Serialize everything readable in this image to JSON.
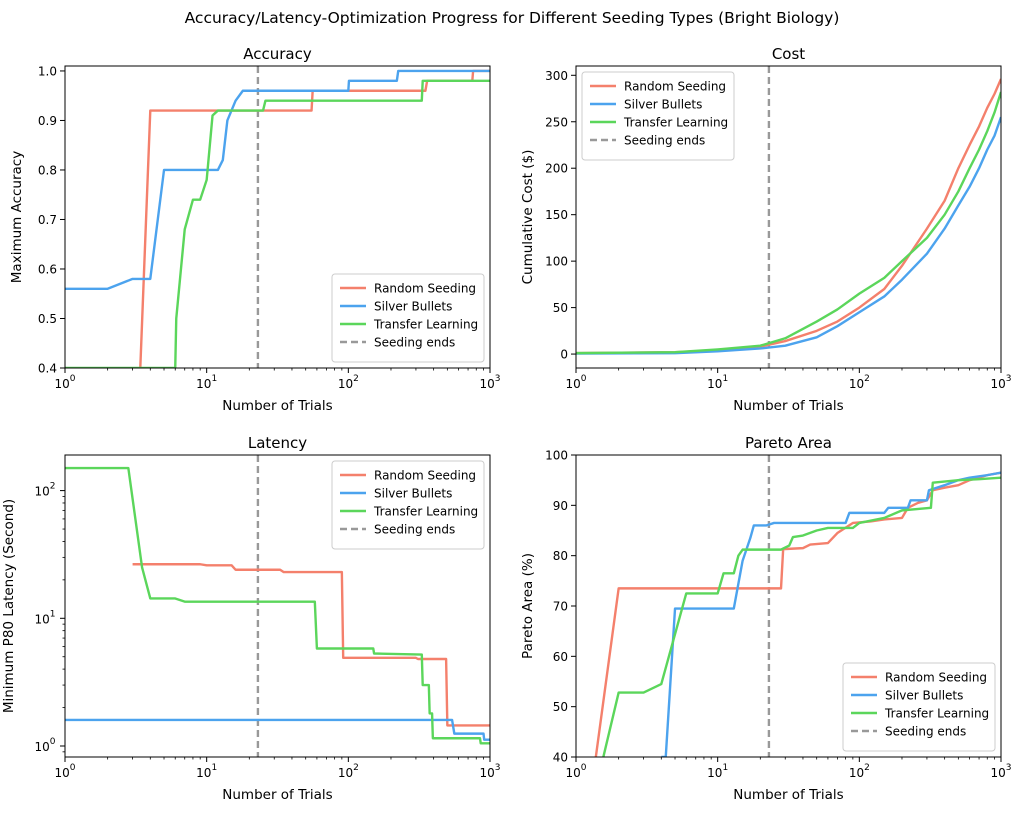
{
  "suptitle": "Accuracy/Latency-Optimization Progress for Different Seeding Types (Bright Biology)",
  "colors": {
    "Random Seeding": "#f4806c",
    "Silver Bullets": "#4ca3ee",
    "Transfer Learning": "#5bd65b",
    "Seeding ends": "#999999"
  },
  "chart_data": [
    {
      "type": "line",
      "title": "Accuracy",
      "xlabel": "Number of Trials",
      "ylabel": "Maximum Accuracy",
      "xscale": "log",
      "yscale": "linear",
      "xlim": [
        1,
        1000
      ],
      "ylim": [
        0.4,
        1.01
      ],
      "yticks": [
        0.4,
        0.5,
        0.6,
        0.7,
        0.8,
        0.9,
        1.0
      ],
      "yticklabels": [
        "0.4",
        "0.5",
        "0.6",
        "0.7",
        "0.8",
        "0.9",
        "1.0"
      ],
      "xticks": [
        1,
        10,
        100,
        1000
      ],
      "xticklabels": [
        "10",
        "10",
        "10",
        "10"
      ],
      "xtick_exponents": [
        "0",
        "1",
        "2",
        "3"
      ],
      "legend_loc": "lower-right",
      "vline": {
        "x": 23,
        "label": "Seeding ends"
      },
      "series": [
        {
          "name": "Random Seeding",
          "points": [
            [
              3.3,
              0.38
            ],
            [
              3.4,
              0.4
            ],
            [
              4,
              0.92
            ],
            [
              55,
              0.92
            ],
            [
              56,
              0.96
            ],
            [
              350,
              0.96
            ],
            [
              360,
              0.98
            ],
            [
              750,
              0.98
            ],
            [
              760,
              1.0
            ],
            [
              1000,
              1.0
            ]
          ]
        },
        {
          "name": "Silver Bullets",
          "points": [
            [
              1,
              0.56
            ],
            [
              2,
              0.56
            ],
            [
              3,
              0.58
            ],
            [
              4,
              0.58
            ],
            [
              5,
              0.8
            ],
            [
              12,
              0.8
            ],
            [
              13,
              0.82
            ],
            [
              14,
              0.9
            ],
            [
              16,
              0.94
            ],
            [
              18,
              0.96
            ],
            [
              100,
              0.96
            ],
            [
              101,
              0.98
            ],
            [
              220,
              0.98
            ],
            [
              225,
              1.0
            ],
            [
              1000,
              1.0
            ]
          ]
        },
        {
          "name": "Transfer Learning",
          "points": [
            [
              1,
              0.4
            ],
            [
              6,
              0.4
            ],
            [
              6.1,
              0.5
            ],
            [
              7,
              0.68
            ],
            [
              8,
              0.74
            ],
            [
              9,
              0.74
            ],
            [
              10,
              0.78
            ],
            [
              11,
              0.91
            ],
            [
              12,
              0.92
            ],
            [
              25,
              0.92
            ],
            [
              26,
              0.94
            ],
            [
              330,
              0.94
            ],
            [
              335,
              0.98
            ],
            [
              1000,
              0.98
            ]
          ]
        }
      ]
    },
    {
      "type": "line",
      "title": "Cost",
      "xlabel": "Number of Trials",
      "ylabel": "Cumulative Cost ($)",
      "xscale": "log",
      "yscale": "linear",
      "xlim": [
        1,
        1000
      ],
      "ylim": [
        -15,
        310
      ],
      "yticks": [
        0,
        50,
        100,
        150,
        200,
        250,
        300
      ],
      "yticklabels": [
        "0",
        "50",
        "100",
        "150",
        "200",
        "250",
        "300"
      ],
      "xticks": [
        1,
        10,
        100,
        1000
      ],
      "xticklabels": [
        "10",
        "10",
        "10",
        "10"
      ],
      "xtick_exponents": [
        "0",
        "1",
        "2",
        "3"
      ],
      "legend_loc": "upper-left",
      "vline": {
        "x": 23,
        "label": "Seeding ends"
      },
      "series": [
        {
          "name": "Random Seeding",
          "points": [
            [
              1,
              1
            ],
            [
              5,
              2
            ],
            [
              10,
              4
            ],
            [
              20,
              8
            ],
            [
              30,
              14
            ],
            [
              50,
              25
            ],
            [
              70,
              35
            ],
            [
              100,
              50
            ],
            [
              150,
              70
            ],
            [
              200,
              95
            ],
            [
              300,
              135
            ],
            [
              400,
              165
            ],
            [
              500,
              200
            ],
            [
              600,
              225
            ],
            [
              700,
              245
            ],
            [
              800,
              265
            ],
            [
              900,
              280
            ],
            [
              1000,
              296
            ]
          ]
        },
        {
          "name": "Silver Bullets",
          "points": [
            [
              1,
              0.5
            ],
            [
              5,
              1
            ],
            [
              10,
              3
            ],
            [
              20,
              6
            ],
            [
              30,
              9
            ],
            [
              50,
              18
            ],
            [
              70,
              30
            ],
            [
              100,
              45
            ],
            [
              150,
              62
            ],
            [
              200,
              80
            ],
            [
              300,
              108
            ],
            [
              400,
              135
            ],
            [
              500,
              160
            ],
            [
              600,
              180
            ],
            [
              700,
              200
            ],
            [
              800,
              220
            ],
            [
              900,
              235
            ],
            [
              1000,
              255
            ]
          ]
        },
        {
          "name": "Transfer Learning",
          "points": [
            [
              1,
              1
            ],
            [
              5,
              2
            ],
            [
              10,
              5
            ],
            [
              20,
              9
            ],
            [
              30,
              17
            ],
            [
              50,
              35
            ],
            [
              70,
              48
            ],
            [
              100,
              65
            ],
            [
              150,
              82
            ],
            [
              200,
              100
            ],
            [
              300,
              125
            ],
            [
              400,
              150
            ],
            [
              500,
              175
            ],
            [
              600,
              200
            ],
            [
              700,
              220
            ],
            [
              800,
              240
            ],
            [
              900,
              260
            ],
            [
              1000,
              282
            ]
          ]
        }
      ]
    },
    {
      "type": "line",
      "title": "Latency",
      "xlabel": "Number of Trials",
      "ylabel": "Minimum P80 Latency (Second)",
      "xscale": "log",
      "yscale": "log",
      "xlim": [
        1,
        1000
      ],
      "ylim": [
        0.82,
        190
      ],
      "yticks": [
        1,
        10,
        100
      ],
      "yticklabels": [
        "10",
        "10",
        "10"
      ],
      "ytick_exponents": [
        "0",
        "1",
        "2"
      ],
      "xticks": [
        1,
        10,
        100,
        1000
      ],
      "xticklabels": [
        "10",
        "10",
        "10",
        "10"
      ],
      "xtick_exponents": [
        "0",
        "1",
        "2",
        "3"
      ],
      "legend_loc": "upper-right",
      "vline": {
        "x": 23,
        "label": "Seeding ends"
      },
      "series": [
        {
          "name": "Random Seeding",
          "points": [
            [
              3,
              26.5
            ],
            [
              9,
              26.5
            ],
            [
              10,
              26
            ],
            [
              15,
              26
            ],
            [
              16,
              24
            ],
            [
              33,
              24
            ],
            [
              35,
              23
            ],
            [
              90,
              23
            ],
            [
              92,
              4.9
            ],
            [
              300,
              4.9
            ],
            [
              310,
              4.8
            ],
            [
              490,
              4.8
            ],
            [
              500,
              1.45
            ],
            [
              1000,
              1.45
            ]
          ]
        },
        {
          "name": "Silver Bullets",
          "points": [
            [
              1,
              1.6
            ],
            [
              540,
              1.6
            ],
            [
              560,
              1.25
            ],
            [
              900,
              1.25
            ],
            [
              910,
              1.12
            ],
            [
              1000,
              1.12
            ]
          ]
        },
        {
          "name": "Transfer Learning",
          "points": [
            [
              1,
              150
            ],
            [
              2.8,
              150
            ],
            [
              3.5,
              25
            ],
            [
              4,
              14.3
            ],
            [
              6,
              14.3
            ],
            [
              7,
              13.5
            ],
            [
              58,
              13.5
            ],
            [
              60,
              5.8
            ],
            [
              150,
              5.8
            ],
            [
              152,
              5.3
            ],
            [
              330,
              5.2
            ],
            [
              335,
              3
            ],
            [
              370,
              3
            ],
            [
              375,
              1.8
            ],
            [
              390,
              1.8
            ],
            [
              395,
              1.15
            ],
            [
              850,
              1.15
            ],
            [
              860,
              1.05
            ],
            [
              1000,
              1.05
            ]
          ]
        }
      ]
    },
    {
      "type": "line",
      "title": "Pareto Area",
      "xlabel": "Number of Trials",
      "ylabel": "Pareto Area (%)",
      "xscale": "log",
      "yscale": "linear",
      "xlim": [
        1,
        1000
      ],
      "ylim": [
        40,
        100
      ],
      "yticks": [
        40,
        50,
        60,
        70,
        80,
        90,
        100
      ],
      "yticklabels": [
        "40",
        "50",
        "60",
        "70",
        "80",
        "90",
        "100"
      ],
      "xticks": [
        1,
        10,
        100,
        1000
      ],
      "xticklabels": [
        "10",
        "10",
        "10",
        "10"
      ],
      "xtick_exponents": [
        "0",
        "1",
        "2",
        "3"
      ],
      "legend_loc": "lower-right",
      "vline": {
        "x": 23,
        "label": "Seeding ends"
      },
      "series": [
        {
          "name": "Random Seeding",
          "points": [
            [
              1.35,
              38
            ],
            [
              2,
              73.5
            ],
            [
              28,
              73.5
            ],
            [
              29,
              81.3
            ],
            [
              40,
              81.5
            ],
            [
              45,
              82.2
            ],
            [
              60,
              82.5
            ],
            [
              70,
              84.5
            ],
            [
              90,
              86.5
            ],
            [
              120,
              86.8
            ],
            [
              150,
              87.2
            ],
            [
              200,
              87.5
            ],
            [
              220,
              89.5
            ],
            [
              260,
              90.5
            ],
            [
              300,
              91
            ],
            [
              330,
              93
            ],
            [
              400,
              93.5
            ],
            [
              500,
              94
            ],
            [
              600,
              95
            ],
            [
              700,
              95.5
            ],
            [
              800,
              96
            ],
            [
              1000,
              96.5
            ]
          ]
        },
        {
          "name": "Silver Bullets",
          "points": [
            [
              4,
              40
            ],
            [
              4.3,
              40
            ],
            [
              5,
              69.5
            ],
            [
              13,
              69.5
            ],
            [
              15,
              79
            ],
            [
              17,
              83.5
            ],
            [
              18,
              86
            ],
            [
              22,
              86
            ],
            [
              25,
              86.5
            ],
            [
              80,
              86.5
            ],
            [
              85,
              88.5
            ],
            [
              150,
              88.5
            ],
            [
              160,
              89.5
            ],
            [
              220,
              89.5
            ],
            [
              230,
              91
            ],
            [
              300,
              91
            ],
            [
              310,
              93
            ],
            [
              400,
              94
            ],
            [
              500,
              95
            ],
            [
              600,
              95.5
            ],
            [
              800,
              96
            ],
            [
              1000,
              96.5
            ]
          ]
        },
        {
          "name": "Transfer Learning",
          "points": [
            [
              1.5,
              38
            ],
            [
              2,
              52.8
            ],
            [
              3,
              52.8
            ],
            [
              4,
              54.5
            ],
            [
              6,
              72.5
            ],
            [
              10,
              72.5
            ],
            [
              11,
              76.5
            ],
            [
              13,
              76.5
            ],
            [
              14,
              80
            ],
            [
              15,
              81.2
            ],
            [
              28,
              81.2
            ],
            [
              32,
              82
            ],
            [
              34,
              83.7
            ],
            [
              40,
              84
            ],
            [
              50,
              85
            ],
            [
              60,
              85.5
            ],
            [
              90,
              85.5
            ],
            [
              100,
              86.5
            ],
            [
              150,
              87.5
            ],
            [
              200,
              89
            ],
            [
              320,
              89.5
            ],
            [
              330,
              94.5
            ],
            [
              500,
              95
            ],
            [
              700,
              95.2
            ],
            [
              1000,
              95.5
            ]
          ]
        }
      ]
    }
  ]
}
